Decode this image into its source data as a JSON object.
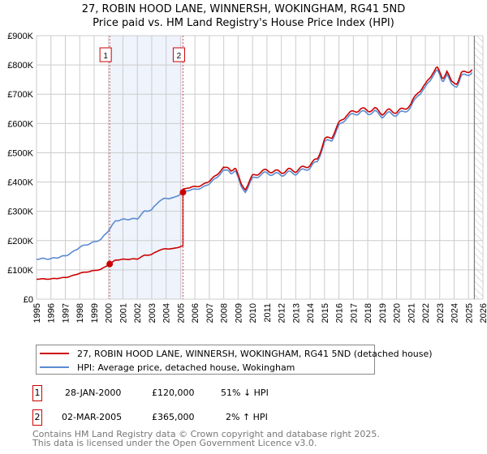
{
  "title": [
    "27, ROBIN HOOD LANE, WINNERSH, WOKINGHAM, RG41 5ND",
    "Price paid vs. HM Land Registry's House Price Index (HPI)"
  ],
  "chart_data": {
    "type": "line",
    "title": "27, ROBIN HOOD LANE, WINNERSH, WOKINGHAM, RG41 5ND — Price paid vs. HM Land Registry's House Price Index (HPI)",
    "xlim": [
      1995,
      2026
    ],
    "ylim": [
      0,
      900000
    ],
    "xticks": [
      "1995",
      "1996",
      "1997",
      "1998",
      "1999",
      "2000",
      "2001",
      "2002",
      "2003",
      "2004",
      "2005",
      "2006",
      "2007",
      "2008",
      "2009",
      "2010",
      "2011",
      "2012",
      "2013",
      "2014",
      "2015",
      "2016",
      "2017",
      "2018",
      "2019",
      "2020",
      "2021",
      "2022",
      "2023",
      "2024",
      "2025",
      "2026"
    ],
    "yticks": [
      "£0",
      "£100K",
      "£200K",
      "£300K",
      "£400K",
      "£500K",
      "£600K",
      "£700K",
      "£800K",
      "£900K"
    ],
    "grid": true,
    "shaded_range": [
      2000.08,
      2005.17
    ],
    "future_hatch_from": 2025.4,
    "hpi_series": {
      "name": "HPI: Average price, detached house, Wokingham",
      "color": "#5b8bd0",
      "x": [
        1995,
        1996,
        1997,
        1997.5,
        1998,
        1999,
        1999.5,
        2000,
        2000.5,
        2001,
        2002,
        2002.5,
        2003,
        2003.5,
        2004,
        2004.5,
        2005,
        2005.5,
        2006,
        2006.5,
        2007,
        2007.5,
        2008,
        2008.5,
        2008.8,
        2009.2,
        2009.5,
        2010,
        2010.5,
        2011,
        2012,
        2012.5,
        2013,
        2014,
        2014.5,
        2015,
        2015.5,
        2016,
        2016.5,
        2017,
        2017.5,
        2018,
        2018.5,
        2019,
        2019.5,
        2020,
        2020.5,
        2021,
        2021.5,
        2022,
        2022.5,
        2022.8,
        2023.2,
        2023.5,
        2023.8,
        2024.2,
        2024.5,
        2025,
        2025.3
      ],
      "y": [
        138000,
        138000,
        148000,
        160000,
        178000,
        195000,
        205000,
        235000,
        268000,
        272000,
        275000,
        300000,
        305000,
        335000,
        345000,
        345000,
        360000,
        372000,
        375000,
        380000,
        395000,
        415000,
        440000,
        430000,
        445000,
        380000,
        370000,
        410000,
        425000,
        430000,
        425000,
        432000,
        430000,
        450000,
        470000,
        535000,
        545000,
        590000,
        620000,
        630000,
        640000,
        635000,
        640000,
        625000,
        635000,
        630000,
        640000,
        655000,
        700000,
        720000,
        765000,
        780000,
        745000,
        770000,
        730000,
        730000,
        760000,
        770000,
        775000
      ]
    },
    "price_series": {
      "name": "27, ROBIN HOOD LANE, WINNERSH, WOKINGHAM, RG41 5ND (detached house)",
      "color": "#cc0000"
    },
    "sales": [
      {
        "n": "1",
        "x": 2000.08,
        "y": 120000
      },
      {
        "n": "2",
        "x": 2005.17,
        "y": 365000
      }
    ]
  },
  "legend": [
    "27, ROBIN HOOD LANE, WINNERSH, WOKINGHAM, RG41 5ND (detached house)",
    "HPI: Average price, detached house, Wokingham"
  ],
  "sales_table": [
    {
      "n": "1",
      "date": "28-JAN-2000",
      "price": "£120,000",
      "hpi": "51% ↓ HPI"
    },
    {
      "n": "2",
      "date": "02-MAR-2005",
      "price": "£365,000",
      "hpi": "2% ↑ HPI"
    }
  ],
  "footer": [
    "Contains HM Land Registry data © Crown copyright and database right 2025.",
    "This data is licensed under the Open Government Licence v3.0."
  ]
}
